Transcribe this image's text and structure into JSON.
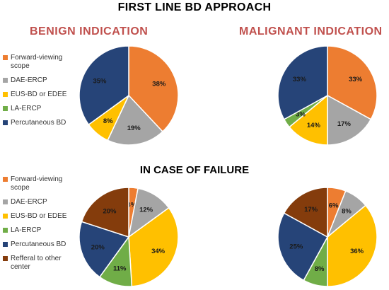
{
  "titles": {
    "main": "FIRST LINE BD APPROACH",
    "benign": "BENIGN INDICATION",
    "malignant": "MALIGNANT INDICATION",
    "failure": "IN CASE OF FAILURE"
  },
  "legend_first": [
    {
      "label": "Forward-viewing scope",
      "color": "#ed7d31"
    },
    {
      "label": "DAE-ERCP",
      "color": "#a5a5a5"
    },
    {
      "label": "EUS-BD or EDEE",
      "color": "#ffc000"
    },
    {
      "label": "LA-ERCP",
      "color": "#70ad47"
    },
    {
      "label": "Percutaneous BD",
      "color": "#264478"
    }
  ],
  "legend_failure": [
    {
      "label": "Forward-viewing scope",
      "color": "#ed7d31"
    },
    {
      "label": "DAE-ERCP",
      "color": "#a5a5a5"
    },
    {
      "label": "EUS-BD or EDEE",
      "color": "#ffc000"
    },
    {
      "label": "LA-ERCP",
      "color": "#70ad47"
    },
    {
      "label": "Percutaneous BD",
      "color": "#264478"
    },
    {
      "label": "Refferal to other center",
      "color": "#843c0c"
    }
  ],
  "chart_data": [
    {
      "type": "pie",
      "title": "BENIGN INDICATION",
      "categories": [
        "Forward-viewing scope",
        "DAE-ERCP",
        "EUS-BD or EDEE",
        "LA-ERCP",
        "Percutaneous BD"
      ],
      "values": [
        38,
        19,
        8,
        0,
        35
      ],
      "labels": [
        "38%",
        "19%",
        "8%",
        "",
        "35%"
      ]
    },
    {
      "type": "pie",
      "title": "MALIGNANT INDICATION",
      "categories": [
        "Forward-viewing scope",
        "DAE-ERCP",
        "EUS-BD or EDEE",
        "LA-ERCP",
        "Percutaneous BD"
      ],
      "values": [
        33,
        17,
        14,
        3,
        33
      ],
      "labels": [
        "33%",
        "17%",
        "14%",
        "3%",
        "33%"
      ]
    },
    {
      "type": "pie",
      "title": "",
      "categories": [
        "Forward-viewing scope",
        "DAE-ERCP",
        "EUS-BD or EDEE",
        "LA-ERCP",
        "Percutaneous BD",
        "Refferal to other center"
      ],
      "values": [
        3,
        12,
        34,
        11,
        20,
        20
      ],
      "labels": [
        "3%",
        "12%",
        "34%",
        "11%",
        "20%",
        "20%"
      ]
    },
    {
      "type": "pie",
      "title": "",
      "categories": [
        "Forward-viewing scope",
        "DAE-ERCP",
        "EUS-BD or EDEE",
        "LA-ERCP",
        "Percutaneous BD",
        "Refferal to other center"
      ],
      "values": [
        6,
        8,
        36,
        8,
        25,
        17
      ],
      "labels": [
        "6%",
        "8%",
        "36%",
        "8%",
        "25%",
        "17%"
      ]
    }
  ]
}
